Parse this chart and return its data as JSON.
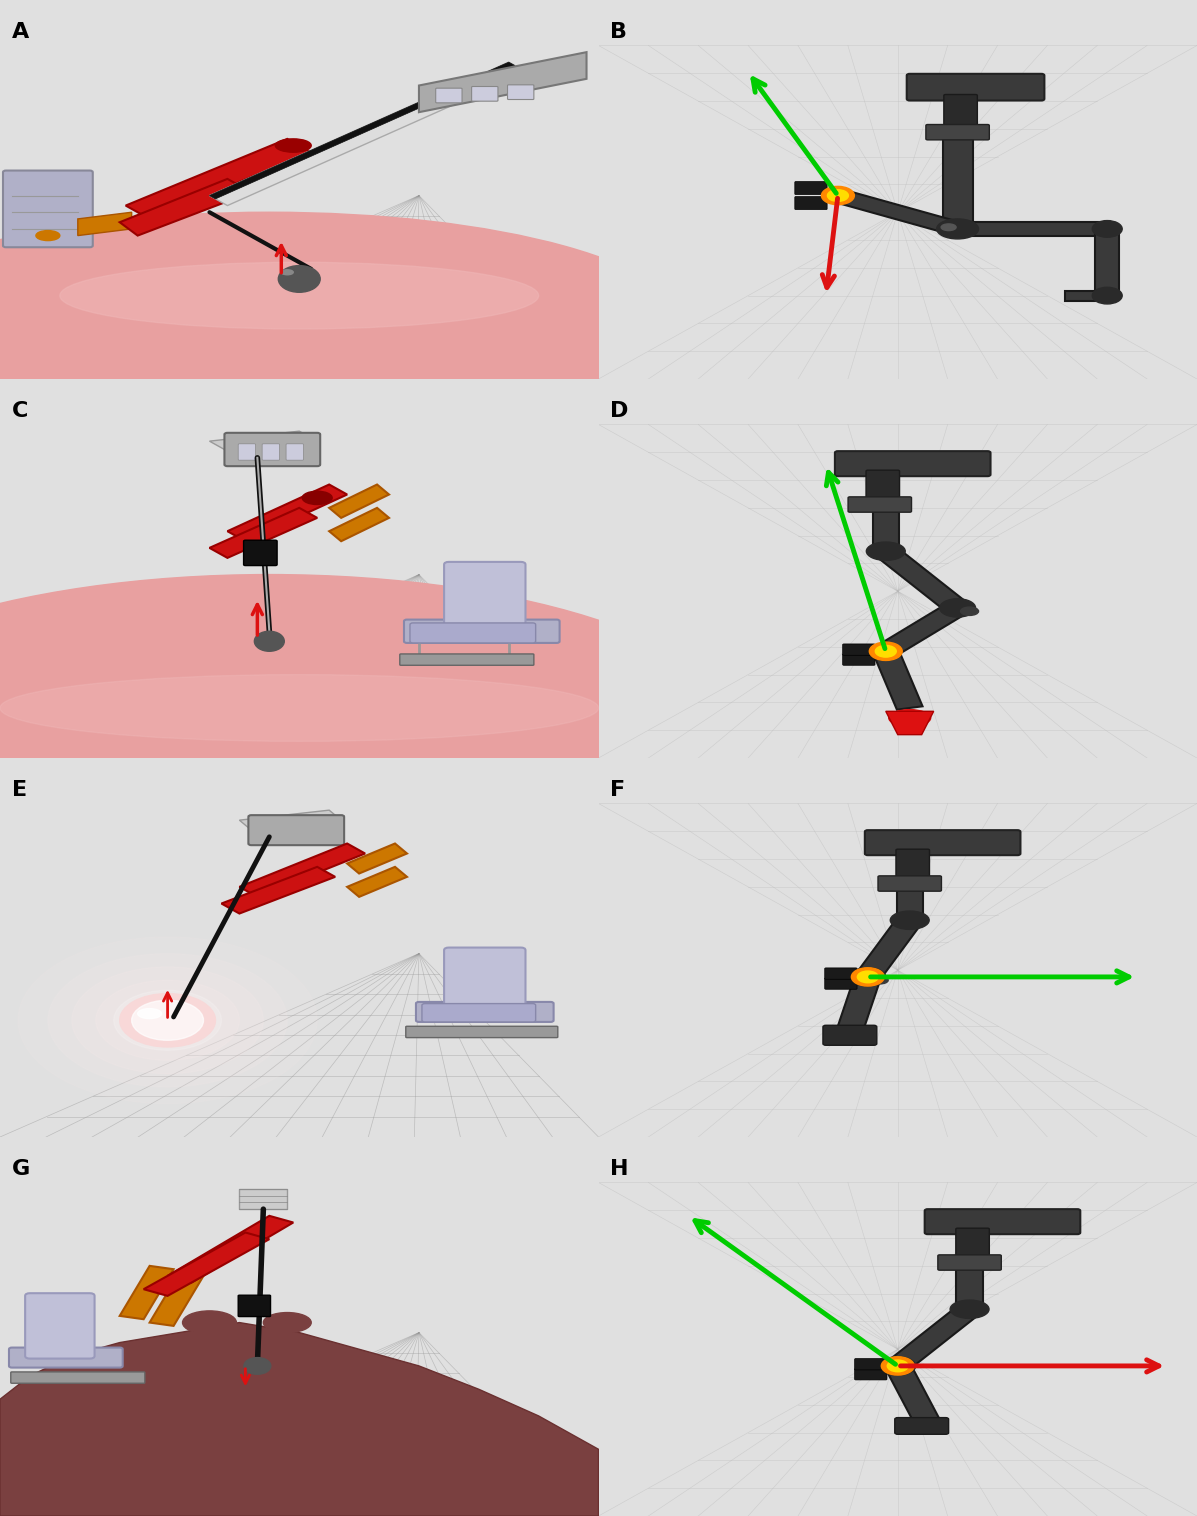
{
  "panels": [
    "A",
    "B",
    "C",
    "D",
    "E",
    "F",
    "G",
    "H"
  ],
  "nrows": 4,
  "ncols": 2,
  "label_fontsize": 16,
  "label_color": "black",
  "label_weight": "bold",
  "figsize": [
    11.97,
    15.16
  ],
  "dpi": 100,
  "bg_outer": "#e0e0e0",
  "bg_left_panel": "#c8c8c8",
  "bg_right_panel": "#d2d2d2",
  "bg_right_render": "#c8c8c8",
  "white_strip": "#ffffff",
  "grid_color": "#aaaaaa",
  "flesh_color": "#e8a0a0",
  "flesh_dark": "#d08080",
  "skin_dark": "#7a4040",
  "robot_dark": "#2a2a2a",
  "robot_mid": "#444444",
  "robot_light": "#888888",
  "robot_silver": "#aaaaaa",
  "robot_white": "#dddddd",
  "robot_red": "#cc1111",
  "robot_orange": "#cc7700",
  "arrow_red": "#dd1111",
  "arrow_green": "#00cc00",
  "yellow": "#ffdd00",
  "needle_black": "#111111",
  "needle_white": "#eeeeee"
}
